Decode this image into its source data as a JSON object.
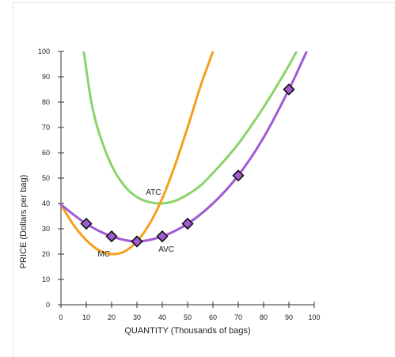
{
  "chart_data": {
    "type": "line",
    "xlabel": "QUANTITY (Thousands of bags)",
    "ylabel": "PRICE (Dollars per bag)",
    "xlim": [
      0,
      100
    ],
    "ylim": [
      0,
      100
    ],
    "xticks": [
      "0",
      "10",
      "20",
      "30",
      "40",
      "50",
      "60",
      "70",
      "80",
      "90",
      "100"
    ],
    "yticks": [
      "0",
      "10",
      "20",
      "30",
      "40",
      "50",
      "60",
      "70",
      "80",
      "90",
      "100"
    ],
    "grid": false,
    "series": [
      {
        "name": "ATC",
        "color": "#8bd36b",
        "x": [
          9,
          12,
          15,
          20,
          25,
          30,
          35,
          40,
          45,
          50,
          55,
          60,
          65,
          70,
          75,
          80,
          85,
          90,
          93
        ],
        "y": [
          100,
          80,
          68,
          55,
          47,
          42.5,
          40.5,
          40,
          41,
          43.5,
          47,
          52,
          57.5,
          63.5,
          70.5,
          78,
          86,
          94.5,
          100
        ]
      },
      {
        "name": "MC",
        "color": "#f5a01a",
        "x": [
          0,
          5,
          10,
          15,
          20,
          25,
          30,
          35,
          40,
          45,
          50,
          55,
          60
        ],
        "y": [
          39.5,
          31.5,
          25.5,
          21.5,
          20,
          21,
          25,
          32,
          42,
          55,
          70,
          86,
          100
        ]
      },
      {
        "name": "AVC",
        "color": "#a05bd4",
        "x": [
          0,
          10,
          20,
          30,
          40,
          50,
          60,
          70,
          80,
          90,
          97
        ],
        "y": [
          39.5,
          32,
          27,
          25,
          27,
          32,
          40,
          51,
          66,
          85,
          100
        ]
      }
    ],
    "points": {
      "series": "AVC",
      "x": [
        10,
        20,
        30,
        40,
        50,
        70,
        90
      ],
      "y": [
        32,
        27,
        25,
        27,
        32,
        51,
        85
      ]
    },
    "labels": [
      {
        "text": "ATC",
        "x": 33.5,
        "y": 43.5
      },
      {
        "text": "MC",
        "x": 14.5,
        "y": 19
      },
      {
        "text": "AVC",
        "x": 38.5,
        "y": 21
      }
    ]
  }
}
